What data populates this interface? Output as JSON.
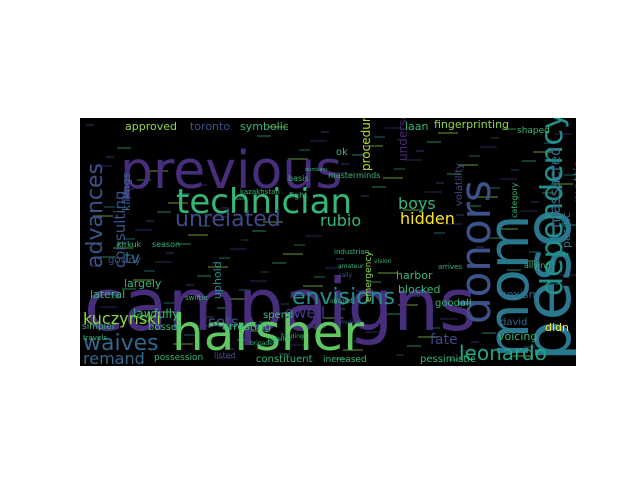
{
  "figure": {
    "background": "#000000",
    "page_background": "#ffffff",
    "colormap": "viridis"
  },
  "words": [
    {
      "text": "previous",
      "color": "#472d7b"
    },
    {
      "text": "campaigns",
      "color": "#472d7b"
    },
    {
      "text": "harsher",
      "color": "#5ec962"
    },
    {
      "text": "peso",
      "color": "#2a788e"
    },
    {
      "text": "mom",
      "color": "#2a788e"
    },
    {
      "text": "technician",
      "color": "#35b779"
    },
    {
      "text": "donors",
      "color": "#3b528b"
    },
    {
      "text": "dependency",
      "color": "#21918c"
    },
    {
      "text": "advances",
      "color": "#3b528b"
    },
    {
      "text": "unrelated",
      "color": "#3e4a89"
    },
    {
      "text": "envisions",
      "color": "#21918c"
    },
    {
      "text": "waives",
      "color": "#31688e"
    },
    {
      "text": "leonardo",
      "color": "#21a585"
    },
    {
      "text": "kuczynski",
      "color": "#90d743"
    },
    {
      "text": "remand",
      "color": "#31688e"
    },
    {
      "text": "massacred",
      "color": "#31688e"
    },
    {
      "text": "consulting",
      "color": "#3b528b"
    },
    {
      "text": "hidden",
      "color": "#fde725"
    },
    {
      "text": "rubio",
      "color": "#35b779"
    },
    {
      "text": "swell",
      "color": "#443983"
    },
    {
      "text": "boys",
      "color": "#35b779"
    },
    {
      "text": "sets",
      "color": "#3b528b"
    },
    {
      "text": "tv",
      "color": "#2a788e"
    },
    {
      "text": "fate",
      "color": "#3e4a89"
    },
    {
      "text": "mattis",
      "color": "#31688e"
    },
    {
      "text": "pacific",
      "color": "#2a788e"
    },
    {
      "text": "procedure",
      "color": "#b5de2b"
    },
    {
      "text": "undersecretary",
      "color": "#482878"
    },
    {
      "text": "lawfully",
      "color": "#35b779"
    },
    {
      "text": "lateral",
      "color": "#35b779"
    },
    {
      "text": "largely",
      "color": "#35b779"
    },
    {
      "text": "approved",
      "color": "#90d743"
    },
    {
      "text": "toronto",
      "color": "#3b528b"
    },
    {
      "text": "symbolic",
      "color": "#35b779"
    },
    {
      "text": "uphold",
      "color": "#21918c"
    },
    {
      "text": "killings",
      "color": "#31688e"
    },
    {
      "text": "fingerprinting",
      "color": "#90d743"
    },
    {
      "text": "laan",
      "color": "#35b779"
    },
    {
      "text": "harbor",
      "color": "#35b779"
    },
    {
      "text": "blocked",
      "color": "#35b779"
    },
    {
      "text": "arresting",
      "color": "#35b779"
    },
    {
      "text": "spend",
      "color": "#35b779"
    },
    {
      "text": "sexism",
      "color": "#31688e"
    },
    {
      "text": "voicing",
      "color": "#35b779"
    },
    {
      "text": "didn",
      "color": "#fde725"
    },
    {
      "text": "david",
      "color": "#31688e"
    },
    {
      "text": "goodall",
      "color": "#35b779"
    },
    {
      "text": "pessimistic",
      "color": "#35b779"
    },
    {
      "text": "constituent",
      "color": "#35b779"
    },
    {
      "text": "increased",
      "color": "#35b779"
    },
    {
      "text": "possession",
      "color": "#35b779"
    },
    {
      "text": "listed",
      "color": "#3b528b"
    },
    {
      "text": "bosses",
      "color": "#35b779"
    },
    {
      "text": "simpler",
      "color": "#35b779"
    },
    {
      "text": "travels",
      "color": "#35b779"
    },
    {
      "text": "gowdy",
      "color": "#3e4a89"
    },
    {
      "text": "kirkuk",
      "color": "#35b779"
    },
    {
      "text": "season",
      "color": "#35b779"
    },
    {
      "text": "masterminds",
      "color": "#35b779"
    },
    {
      "text": "fight",
      "color": "#35b779"
    },
    {
      "text": "basis",
      "color": "#35b779"
    },
    {
      "text": "kazakhstan",
      "color": "#35b779"
    },
    {
      "text": "industrian",
      "color": "#35b779"
    },
    {
      "text": "emergency",
      "color": "#90d743"
    },
    {
      "text": "shaped",
      "color": "#35b779"
    },
    {
      "text": "volatility",
      "color": "#3e4a89"
    },
    {
      "text": "category",
      "color": "#35b779"
    },
    {
      "text": "allying",
      "color": "#35b779"
    },
    {
      "text": "arrives",
      "color": "#35b779"
    },
    {
      "text": "swiftie",
      "color": "#35b779"
    },
    {
      "text": "dumbass",
      "color": "#35b779"
    },
    {
      "text": "ok",
      "color": "#35b779"
    },
    {
      "text": "obliged",
      "color": "#35b779"
    },
    {
      "text": "mulled",
      "color": "#3b528b"
    },
    {
      "text": "brigades",
      "color": "#35b779"
    },
    {
      "text": "pipeline",
      "color": "#35b779"
    },
    {
      "text": "amateur",
      "color": "#35b779"
    },
    {
      "text": "rally",
      "color": "#3b528b"
    },
    {
      "text": "funding",
      "color": "#35b779"
    },
    {
      "text": "vision",
      "color": "#35b779"
    }
  ]
}
